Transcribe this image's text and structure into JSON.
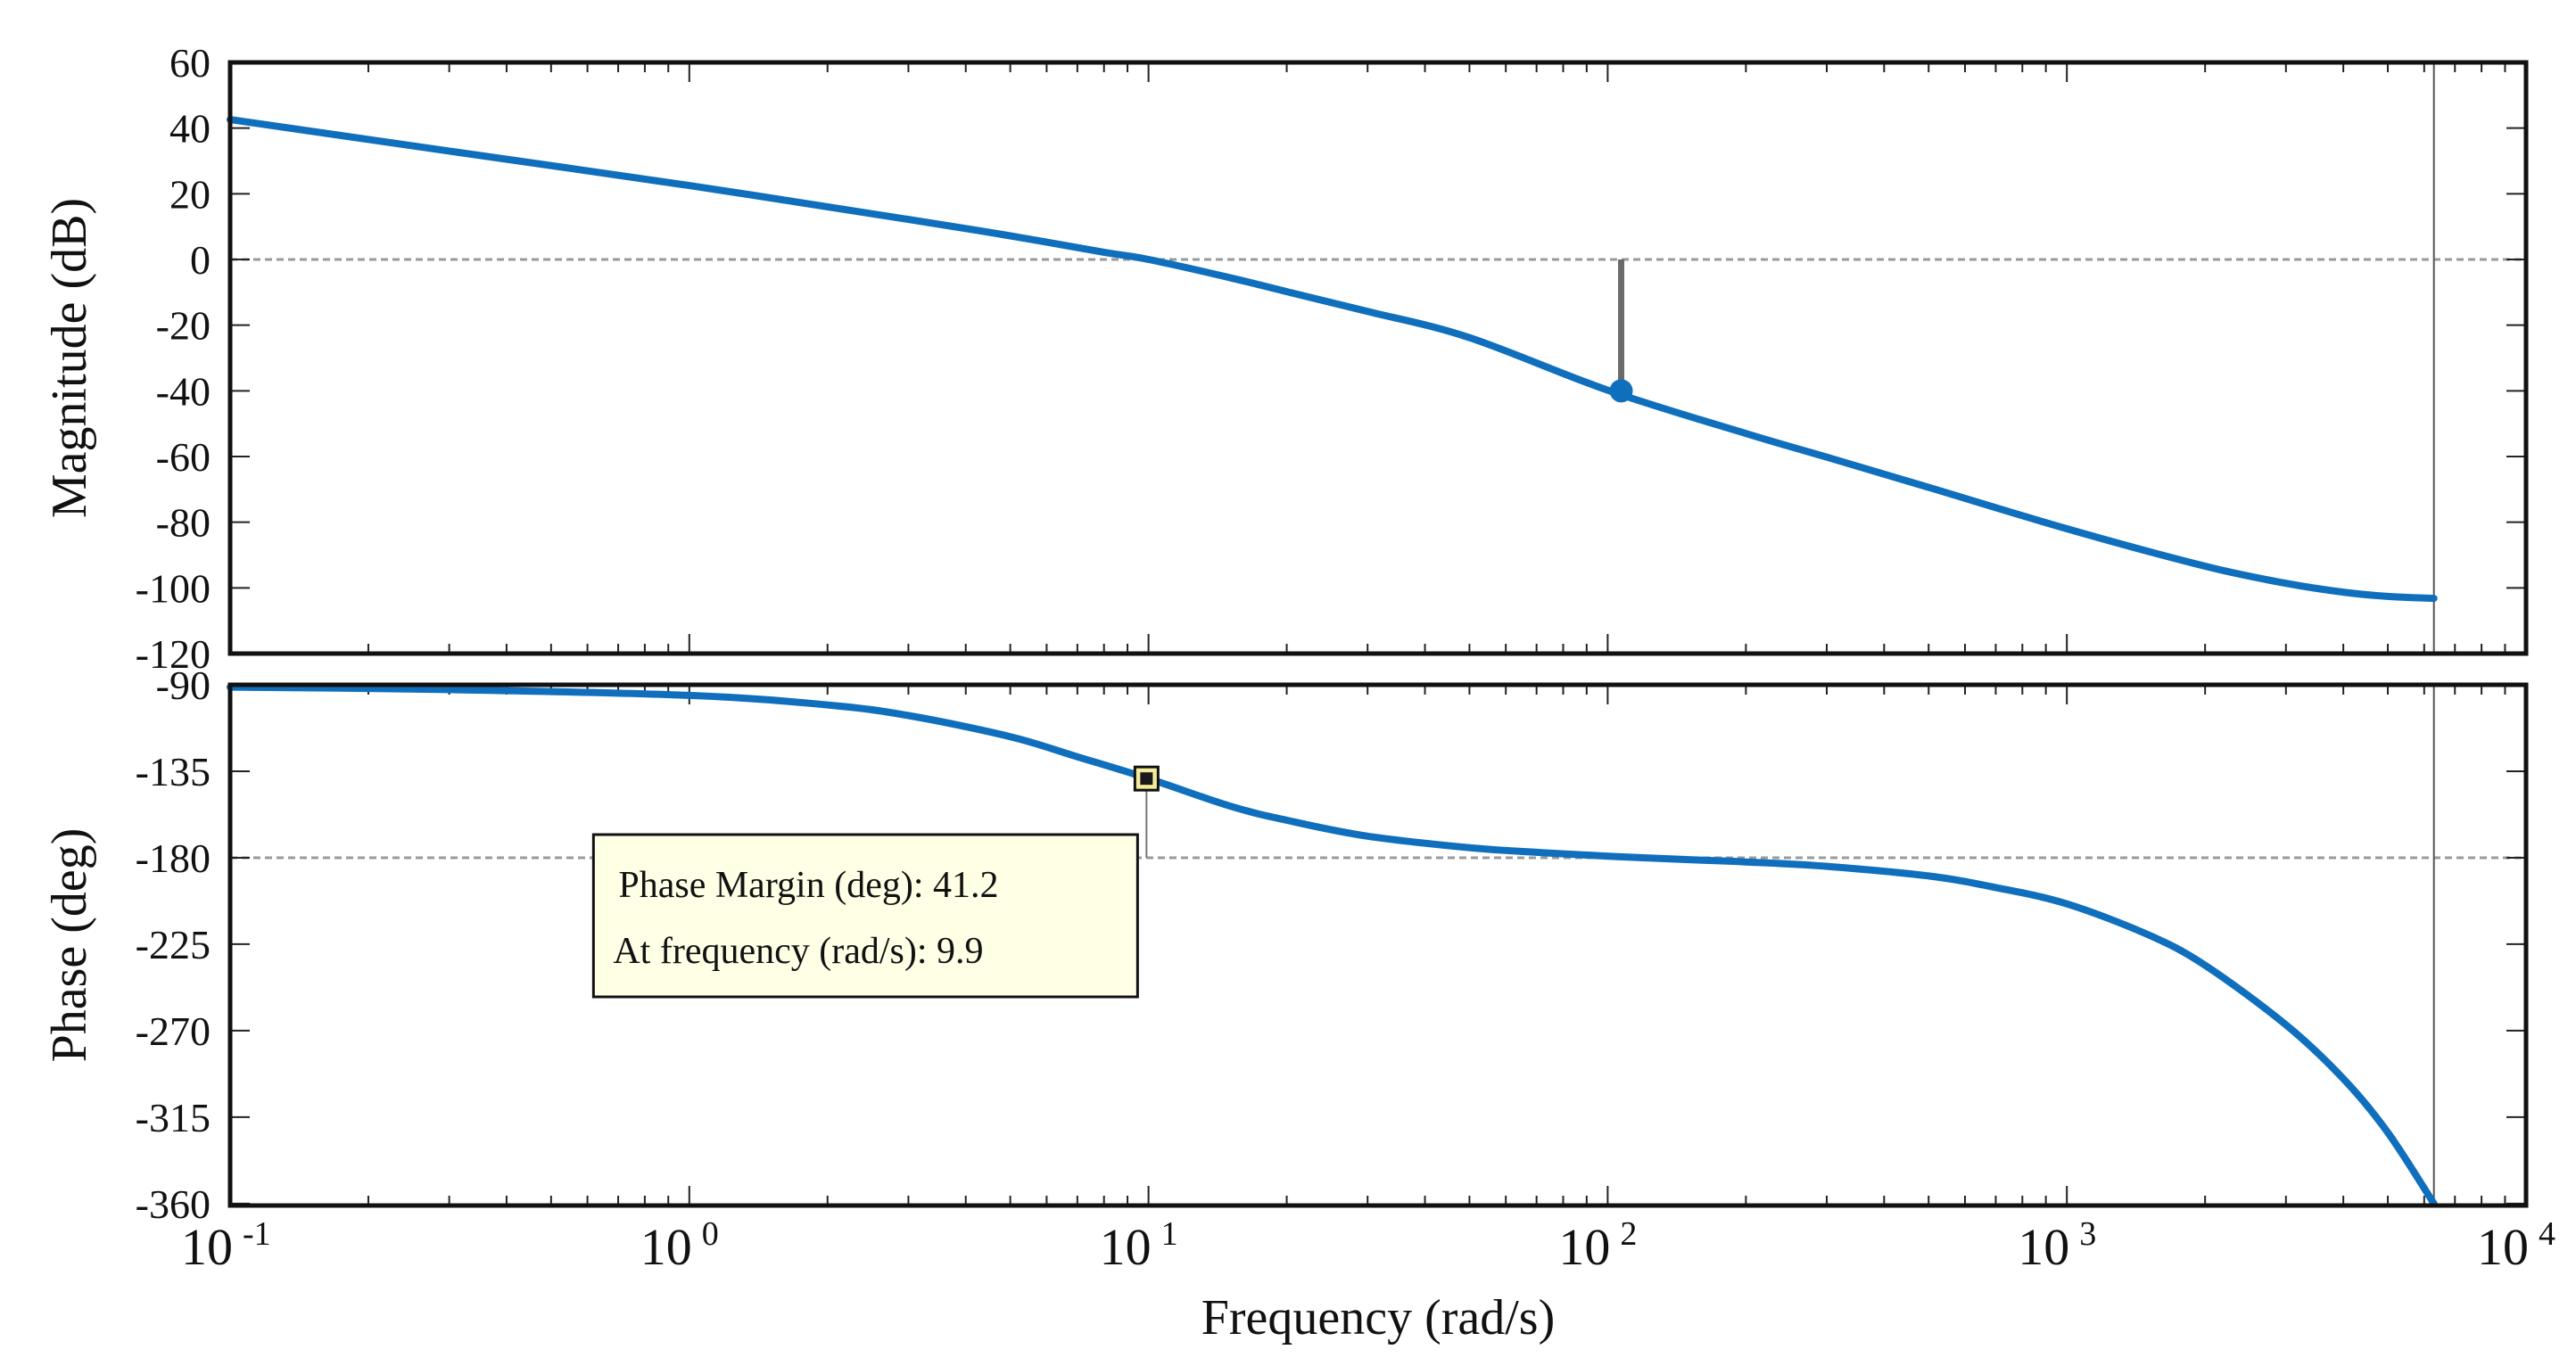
{
  "chart_data": [
    {
      "type": "line",
      "panel": "magnitude",
      "ylabel": "Magnitude (dB)",
      "xscale": "log",
      "xlim": [
        0.1,
        10000
      ],
      "ylim": [
        -120,
        60
      ],
      "yticks": [
        60,
        40,
        20,
        0,
        -20,
        -40,
        -60,
        -80,
        -100,
        -120
      ],
      "ytick_labels": [
        "60",
        "40",
        "20",
        "0",
        "-20",
        "-40",
        "-60",
        "-80",
        "-100",
        "-120"
      ],
      "reference_line_y": 0,
      "vertical_marker_x": 6300,
      "series": [
        {
          "name": "magnitude",
          "color": "#0f6fbd",
          "x": [
            0.1,
            0.3,
            1,
            3,
            5,
            8,
            10,
            15,
            20,
            30,
            50,
            100,
            200,
            300,
            500,
            1000,
            2000,
            3000,
            4000,
            5000,
            6300
          ],
          "y": [
            42.6,
            33,
            22.5,
            12.2,
            7.2,
            2.2,
            0,
            -5.5,
            -9.8,
            -15.8,
            -23.8,
            -39.8,
            -53,
            -60.2,
            -69.4,
            -82,
            -93.4,
            -98.6,
            -101.3,
            -102.6,
            -103.2
          ]
        }
      ],
      "annotations": [
        {
          "kind": "gain-margin-marker",
          "x": 107,
          "y": -40,
          "from_y": 0
        }
      ]
    },
    {
      "type": "line",
      "panel": "phase",
      "ylabel": "Phase (deg)",
      "xlabel": "Frequency (rad/s)",
      "xscale": "log",
      "xlim": [
        0.1,
        10000
      ],
      "ylim": [
        -361,
        -90
      ],
      "yticks": [
        -90,
        -135,
        -180,
        -225,
        -270,
        -315,
        -360
      ],
      "ytick_labels": [
        "-90",
        "-135",
        "-180",
        "-225",
        "-270",
        "-315",
        "-360"
      ],
      "xticks": [
        0.1,
        1,
        10,
        100,
        1000,
        10000
      ],
      "xtick_labels": [
        {
          "base": "10",
          "exp": "-1"
        },
        {
          "base": "10",
          "exp": "0"
        },
        {
          "base": "10",
          "exp": "1"
        },
        {
          "base": "10",
          "exp": "2"
        },
        {
          "base": "10",
          "exp": "3"
        },
        {
          "base": "10",
          "exp": "4"
        }
      ],
      "reference_line_y": -180,
      "vertical_marker_x": 6300,
      "series": [
        {
          "name": "phase",
          "color": "#0f6fbd",
          "x": [
            0.1,
            0.3,
            1,
            2,
            3,
            5,
            7,
            10,
            15,
            20,
            30,
            50,
            70,
            100,
            150,
            200,
            300,
            500,
            700,
            1000,
            1500,
            2000,
            3000,
            4000,
            5000,
            6300
          ],
          "y": [
            -91.2,
            -92.5,
            -95.5,
            -100.5,
            -106,
            -117,
            -127.5,
            -138.8,
            -153,
            -160.5,
            -168.8,
            -174.8,
            -177.2,
            -179.2,
            -181,
            -182.2,
            -184.5,
            -189.5,
            -195.5,
            -204,
            -220,
            -236,
            -267,
            -295,
            -323,
            -360
          ]
        }
      ],
      "annotations": [
        {
          "kind": "phase-margin-marker",
          "x": 9.9,
          "y": -138.8,
          "to_y": -180
        }
      ],
      "tooltip": {
        "line1": "Phase Margin (deg): 41.2",
        "line2": "At frequency (rad/s): 9.9",
        "anchor_x": 9.9
      }
    }
  ]
}
